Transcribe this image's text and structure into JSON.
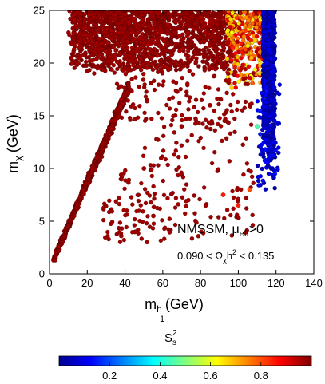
{
  "chart_data": {
    "type": "scatter",
    "xlim": [
      0,
      140
    ],
    "ylim": [
      0,
      25
    ],
    "x_ticks": [
      0,
      20,
      40,
      60,
      80,
      100,
      120,
      140
    ],
    "y_ticks": [
      0,
      5,
      10,
      15,
      20,
      25
    ],
    "xlabel": {
      "main": "m",
      "sub": "h",
      "subsub": "1",
      "unit": "(GeV)"
    },
    "ylabel": {
      "main": "m",
      "sub": "χ",
      "unit": "(GeV)"
    },
    "annotation": {
      "line1_main": "NMSSM, μ",
      "line1_sub": "eff",
      "line1_tail": ">0",
      "line2_left": "0.090 < Ω",
      "line2_sub": "χ",
      "line2_mid": "h",
      "line2_sup": "2",
      "line2_right": " < 0.135"
    },
    "colorbar": {
      "label": "S",
      "label_sub": "s",
      "label_sup": "2",
      "range": [
        0.0,
        1.0
      ],
      "ticks": [
        0.2,
        0.4,
        0.6,
        0.8
      ],
      "tick_labels": [
        "0.2",
        "0.4",
        "0.6",
        "0.8"
      ],
      "colormap": "jet"
    },
    "regions": [
      {
        "name": "diagonal band",
        "x_range": [
          0,
          45
        ],
        "y_range": [
          1,
          18
        ],
        "color_value": 0.98
      },
      {
        "name": "upper cluster",
        "x_range": [
          10,
          100
        ],
        "y_range": [
          20,
          25
        ],
        "color_value": 0.97
      },
      {
        "name": "transition cluster",
        "x_range": [
          95,
          113
        ],
        "y_range": [
          17,
          25
        ],
        "color_value": [
          0.7,
          0.95
        ]
      },
      {
        "name": "vertical strip",
        "x_range": [
          112,
          120
        ],
        "y_range": [
          9,
          25
        ],
        "color_value": 0.05
      },
      {
        "name": "scattered",
        "x_range": [
          30,
          110
        ],
        "y_range": [
          3,
          20
        ],
        "color_value": 0.97
      }
    ],
    "points": [
      {
        "x": 3,
        "y": 1.3,
        "c": 0.98
      },
      {
        "x": 5,
        "y": 2.2,
        "c": 0.98
      },
      {
        "x": 8,
        "y": 3.5,
        "c": 0.98
      },
      {
        "x": 10,
        "y": 4.5,
        "c": 0.98
      },
      {
        "x": 13,
        "y": 5.5,
        "c": 0.98
      },
      {
        "x": 15,
        "y": 6.5,
        "c": 0.98
      },
      {
        "x": 18,
        "y": 8.0,
        "c": 0.98
      },
      {
        "x": 20,
        "y": 9.0,
        "c": 0.98
      },
      {
        "x": 23,
        "y": 10.2,
        "c": 0.98
      },
      {
        "x": 25,
        "y": 11.0,
        "c": 0.98
      },
      {
        "x": 28,
        "y": 12.2,
        "c": 0.98
      },
      {
        "x": 30,
        "y": 13.2,
        "c": 0.98
      },
      {
        "x": 33,
        "y": 14.5,
        "c": 0.98
      },
      {
        "x": 36,
        "y": 15.6,
        "c": 0.98
      },
      {
        "x": 40,
        "y": 17.0,
        "c": 0.98
      },
      {
        "x": 24,
        "y": 21.0,
        "c": 0.97
      },
      {
        "x": 40,
        "y": 22.5,
        "c": 0.97
      },
      {
        "x": 60,
        "y": 23.0,
        "c": 0.97
      },
      {
        "x": 80,
        "y": 22.0,
        "c": 0.97
      },
      {
        "x": 97,
        "y": 21.5,
        "c": 0.85
      },
      {
        "x": 103,
        "y": 22.5,
        "c": 0.75
      },
      {
        "x": 107,
        "y": 20.5,
        "c": 0.7
      },
      {
        "x": 115,
        "y": 24.0,
        "c": 0.05
      },
      {
        "x": 117,
        "y": 18.0,
        "c": 0.05
      },
      {
        "x": 116,
        "y": 13.0,
        "c": 0.05
      },
      {
        "x": 118,
        "y": 10.0,
        "c": 0.05
      },
      {
        "x": 110,
        "y": 14.0,
        "c": 0.45
      },
      {
        "x": 106,
        "y": 8.0,
        "c": 0.8
      },
      {
        "x": 92,
        "y": 7.5,
        "c": 0.85
      },
      {
        "x": 100,
        "y": 6.5,
        "c": 0.85
      },
      {
        "x": 50,
        "y": 10.0,
        "c": 0.97
      },
      {
        "x": 70,
        "y": 14.0,
        "c": 0.97
      },
      {
        "x": 55,
        "y": 5.5,
        "c": 0.97
      },
      {
        "x": 38,
        "y": 3.6,
        "c": 0.97
      },
      {
        "x": 85,
        "y": 16.0,
        "c": 0.97
      }
    ]
  }
}
